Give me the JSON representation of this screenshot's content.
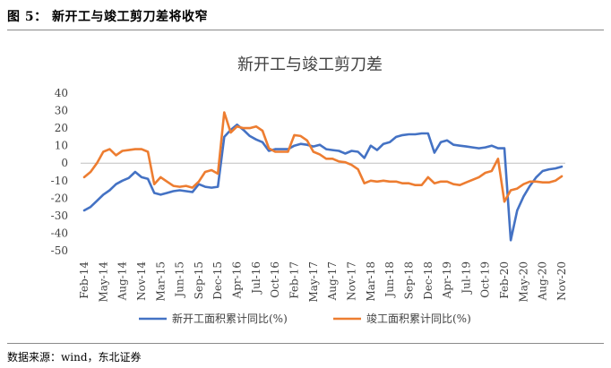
{
  "header": {
    "figure_title": "图 5： 新开工与竣工剪刀差将收窄"
  },
  "footer": {
    "source": "数据来源：wind，东北证券"
  },
  "colors": {
    "series1": "#4472C4",
    "series2": "#ED7D31",
    "axis": "#bfbfbf"
  },
  "chart_data": {
    "type": "line",
    "title": "新开工与竣工剪刀差",
    "xlabel": "",
    "ylabel": "",
    "ylim": [
      -50,
      40
    ],
    "yticks": [
      40,
      30,
      20,
      10,
      0,
      -10,
      -20,
      -30,
      -40,
      -50
    ],
    "grid": false,
    "legend_position": "bottom",
    "x_tick_labels": [
      "Feb-14",
      "May-14",
      "Aug-14",
      "Nov-14",
      "Mar-15",
      "Jun-15",
      "Sep-15",
      "Dec-15",
      "Apr-16",
      "Jul-16",
      "Oct-16",
      "Feb-17",
      "May-17",
      "Aug-17",
      "Nov-17",
      "Mar-18",
      "Jun-18",
      "Sep-18",
      "Dec-18",
      "Apr-19",
      "Jul-19",
      "Oct-19",
      "Feb-20",
      "May-20",
      "Aug-20",
      "Nov-20"
    ],
    "x": [
      "Feb-14",
      "Mar-14",
      "Apr-14",
      "May-14",
      "Jun-14",
      "Jul-14",
      "Aug-14",
      "Sep-14",
      "Oct-14",
      "Nov-14",
      "Dec-14",
      "Feb-15",
      "Mar-15",
      "Apr-15",
      "May-15",
      "Jun-15",
      "Jul-15",
      "Aug-15",
      "Sep-15",
      "Oct-15",
      "Nov-15",
      "Dec-15",
      "Feb-16",
      "Mar-16",
      "Apr-16",
      "May-16",
      "Jun-16",
      "Jul-16",
      "Aug-16",
      "Sep-16",
      "Oct-16",
      "Nov-16",
      "Dec-16",
      "Feb-17",
      "Mar-17",
      "Apr-17",
      "May-17",
      "Jun-17",
      "Jul-17",
      "Aug-17",
      "Sep-17",
      "Oct-17",
      "Nov-17",
      "Dec-17",
      "Feb-18",
      "Mar-18",
      "Apr-18",
      "May-18",
      "Jun-18",
      "Jul-18",
      "Aug-18",
      "Sep-18",
      "Oct-18",
      "Nov-18",
      "Dec-18",
      "Feb-19",
      "Mar-19",
      "Apr-19",
      "May-19",
      "Jun-19",
      "Jul-19",
      "Aug-19",
      "Sep-19",
      "Oct-19",
      "Nov-19",
      "Dec-19",
      "Feb-20",
      "Mar-20",
      "Apr-20",
      "May-20",
      "Jun-20",
      "Jul-20",
      "Aug-20",
      "Sep-20",
      "Oct-20",
      "Nov-20"
    ],
    "series": [
      {
        "name": "新开工面积累计同比(%)",
        "values": [
          -27,
          -25,
          -21.5,
          -18,
          -15.5,
          -12,
          -10,
          -8.5,
          -5,
          -8,
          -9,
          -17,
          -18,
          -17,
          -16,
          -15.5,
          -16,
          -16.5,
          -12,
          -13.5,
          -14,
          -13.5,
          15,
          19,
          22,
          19,
          15.5,
          13.5,
          12,
          7,
          8,
          8,
          8,
          10,
          11,
          10.5,
          9.5,
          10.5,
          8,
          7.5,
          7,
          5.5,
          7,
          6.5,
          3,
          10,
          7.5,
          11,
          12,
          15,
          16,
          16.5,
          16.5,
          17,
          17,
          6,
          12,
          13,
          10.5,
          10,
          9.5,
          9,
          8.5,
          9,
          10,
          8.5,
          8.5,
          -44,
          -27,
          -19,
          -13,
          -8,
          -4.5,
          -3.5,
          -3,
          -2
        ]
      },
      {
        "name": "竣工面积累计同比(%)",
        "values": [
          -8,
          -5,
          0,
          6.5,
          8,
          4.5,
          7,
          7.5,
          8,
          8,
          6.5,
          -12,
          -8,
          -10.5,
          -13,
          -13.5,
          -13,
          -14,
          -10.5,
          -5,
          -4,
          -6,
          29,
          17.5,
          21,
          20,
          20,
          21,
          18.5,
          8.5,
          6.5,
          6.5,
          6.5,
          16,
          15.5,
          13,
          6.5,
          5,
          2.5,
          2.5,
          1,
          0.5,
          -1,
          -3.5,
          -11.5,
          -10,
          -10.5,
          -10,
          -10.5,
          -10.5,
          -11.5,
          -11.5,
          -12.5,
          -12.5,
          -8,
          -11.5,
          -10.5,
          -10.5,
          -12,
          -12.5,
          -11,
          -9.5,
          -8,
          -5.5,
          -4.5,
          2.5,
          -22,
          -15.5,
          -14.5,
          -12,
          -10.5,
          -10.5,
          -11,
          -11,
          -10,
          -7.5
        ]
      }
    ]
  }
}
